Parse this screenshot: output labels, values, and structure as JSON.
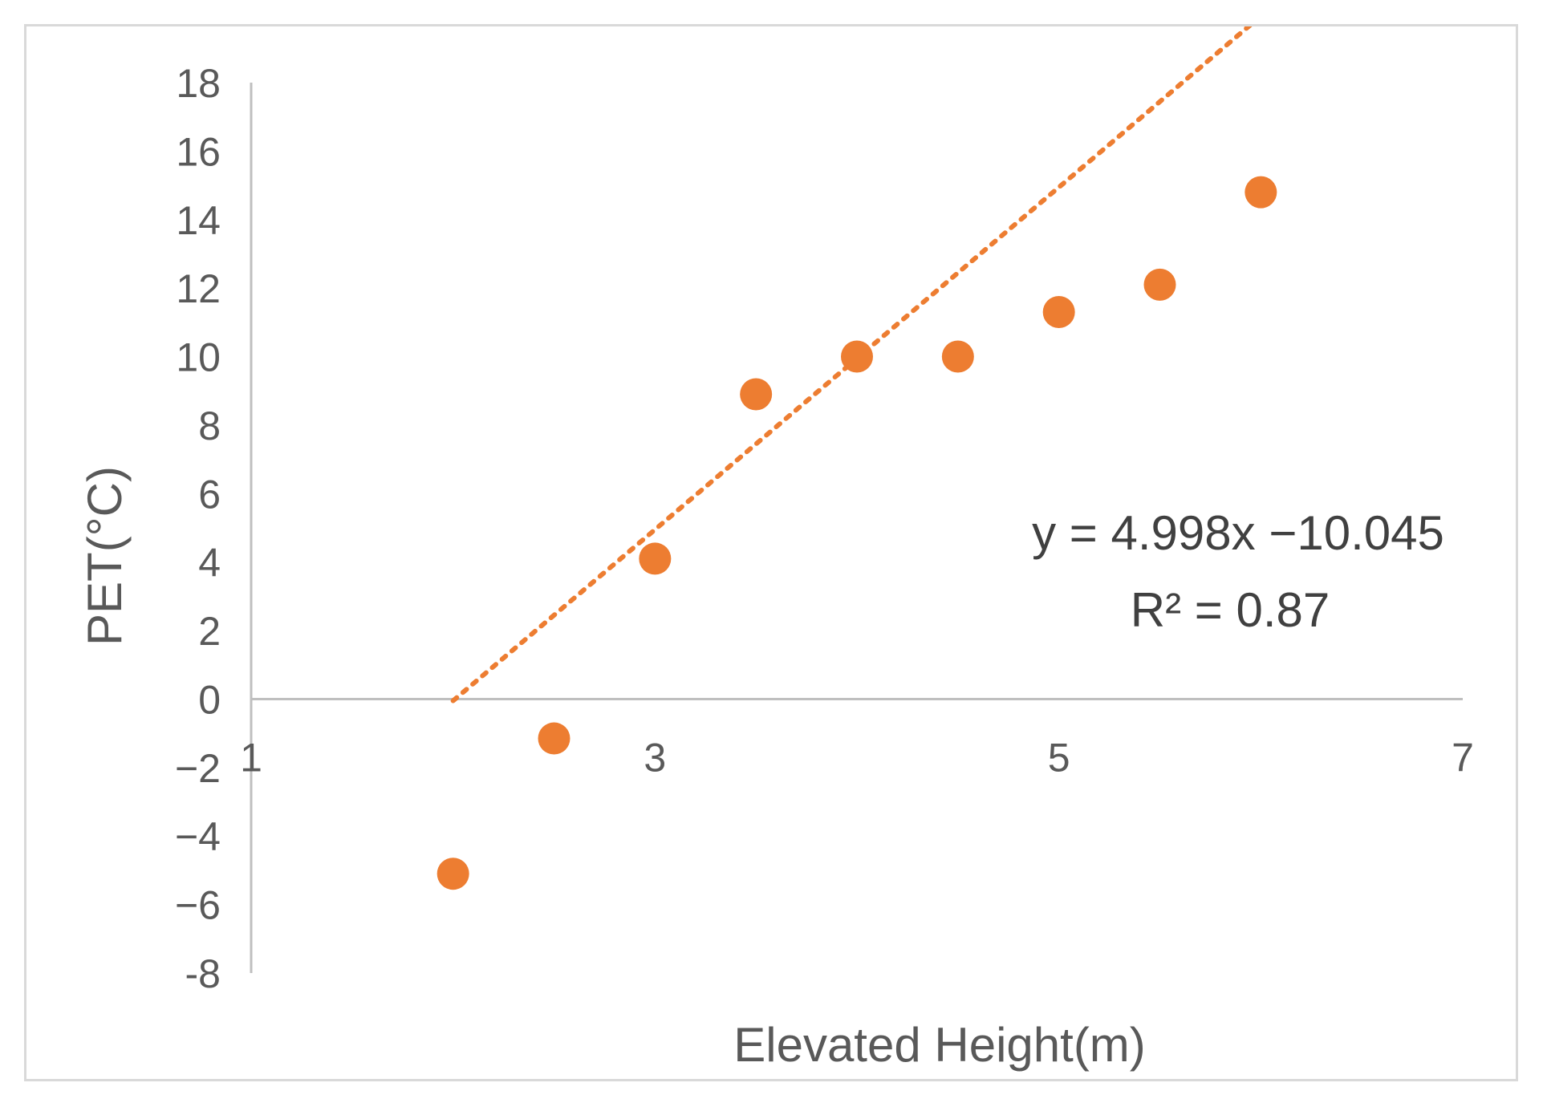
{
  "chart_data": {
    "type": "scatter",
    "title": "",
    "xlabel": "Elevated Height(m)",
    "ylabel": "PET(°C)",
    "xlim": [
      1,
      7
    ],
    "ylim": [
      -8,
      18
    ],
    "x_ticks": [
      "1",
      "3",
      "5",
      "7"
    ],
    "y_ticks": [
      "18",
      "16",
      "14",
      "12",
      "10",
      "8",
      "6",
      "4",
      "2",
      "0",
      "−2",
      "−4",
      "−6",
      "-8"
    ],
    "series": [
      {
        "color": "#ed7d31",
        "points": [
          {
            "x": 2.0,
            "y": -5.1
          },
          {
            "x": 2.5,
            "y": -1.15
          },
          {
            "x": 3.0,
            "y": 4.1
          },
          {
            "x": 3.5,
            "y": 8.9
          },
          {
            "x": 4.0,
            "y": 10.0
          },
          {
            "x": 4.5,
            "y": 10.0
          },
          {
            "x": 5.0,
            "y": 11.3
          },
          {
            "x": 5.5,
            "y": 12.1
          },
          {
            "x": 6.0,
            "y": 14.8
          }
        ]
      }
    ],
    "trendline": {
      "style": "dotted",
      "color": "#ed7d31",
      "slope": 4.998,
      "intercept": -10.045,
      "x_range": [
        2.0,
        6.0
      ],
      "equation_label": "y = 4.998x −10.045",
      "r2_label": "R² = 0.87"
    },
    "grid": false,
    "legend": "none"
  }
}
